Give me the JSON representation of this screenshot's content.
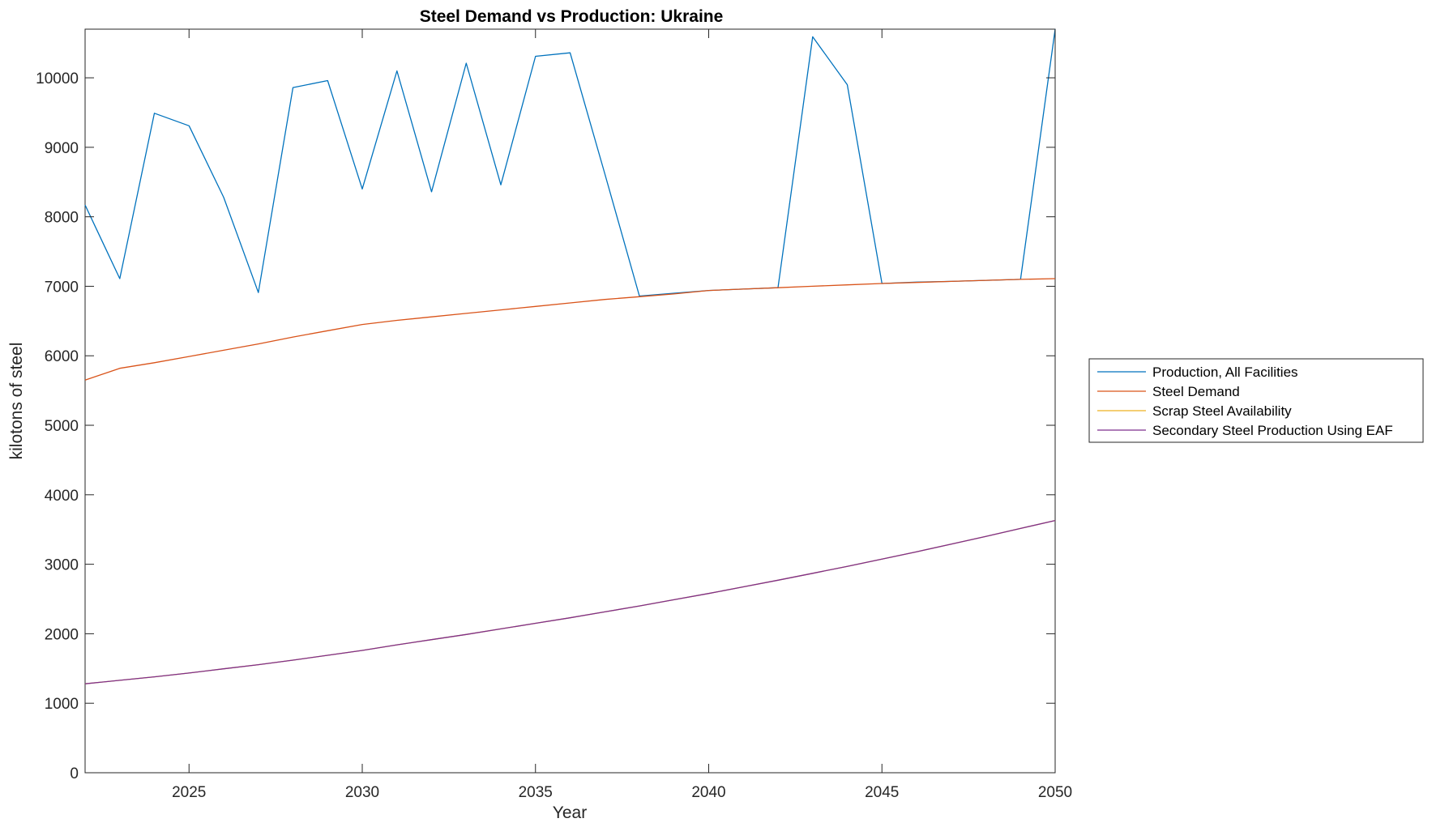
{
  "chart_data": {
    "type": "line",
    "title": "Steel Demand vs Production: Ukraine",
    "xlabel": "Year",
    "ylabel": "kilotons of steel",
    "xlim": [
      2022,
      2050
    ],
    "ylim": [
      0,
      10700
    ],
    "xticks": [
      2025,
      2030,
      2035,
      2040,
      2045,
      2050
    ],
    "yticks": [
      0,
      1000,
      2000,
      3000,
      4000,
      5000,
      6000,
      7000,
      8000,
      9000,
      10000
    ],
    "grid": false,
    "legend_position": "outside-right",
    "x": [
      2022,
      2023,
      2024,
      2025,
      2026,
      2027,
      2028,
      2029,
      2030,
      2031,
      2032,
      2033,
      2034,
      2035,
      2036,
      2037,
      2038,
      2039,
      2040,
      2041,
      2042,
      2043,
      2044,
      2045,
      2046,
      2047,
      2048,
      2049,
      2050
    ],
    "series": [
      {
        "name": "Production, All Facilities",
        "color": "#0072BD",
        "values": [
          8170,
          7110,
          9490,
          9310,
          8280,
          6910,
          9860,
          9960,
          8400,
          10100,
          8360,
          10210,
          8460,
          10310,
          10360,
          8620,
          6860,
          6900,
          6940,
          6960,
          6980,
          10590,
          9900,
          7040,
          7060,
          7070,
          7085,
          7100,
          10700
        ]
      },
      {
        "name": "Steel Demand",
        "color": "#D95319",
        "values": [
          5650,
          5820,
          5900,
          5990,
          6080,
          6170,
          6270,
          6360,
          6450,
          6510,
          6560,
          6610,
          6660,
          6710,
          6760,
          6810,
          6850,
          6890,
          6940,
          6960,
          6980,
          7000,
          7020,
          7040,
          7055,
          7070,
          7085,
          7100,
          7110
        ]
      },
      {
        "name": "Scrap Steel Availability",
        "color": "#EDB120",
        "values": [
          1280,
          1330,
          1380,
          1435,
          1495,
          1555,
          1620,
          1690,
          1760,
          1840,
          1915,
          1990,
          2070,
          2150,
          2230,
          2315,
          2400,
          2490,
          2580,
          2675,
          2770,
          2870,
          2970,
          3075,
          3180,
          3290,
          3400,
          3515,
          3630
        ]
      },
      {
        "name": "Secondary Steel Production Using EAF",
        "color": "#7E2F8E",
        "values": [
          1280,
          1330,
          1380,
          1435,
          1495,
          1555,
          1620,
          1690,
          1760,
          1840,
          1915,
          1990,
          2070,
          2150,
          2230,
          2315,
          2400,
          2490,
          2580,
          2675,
          2770,
          2870,
          2970,
          3075,
          3180,
          3290,
          3400,
          3515,
          3630
        ]
      }
    ]
  }
}
